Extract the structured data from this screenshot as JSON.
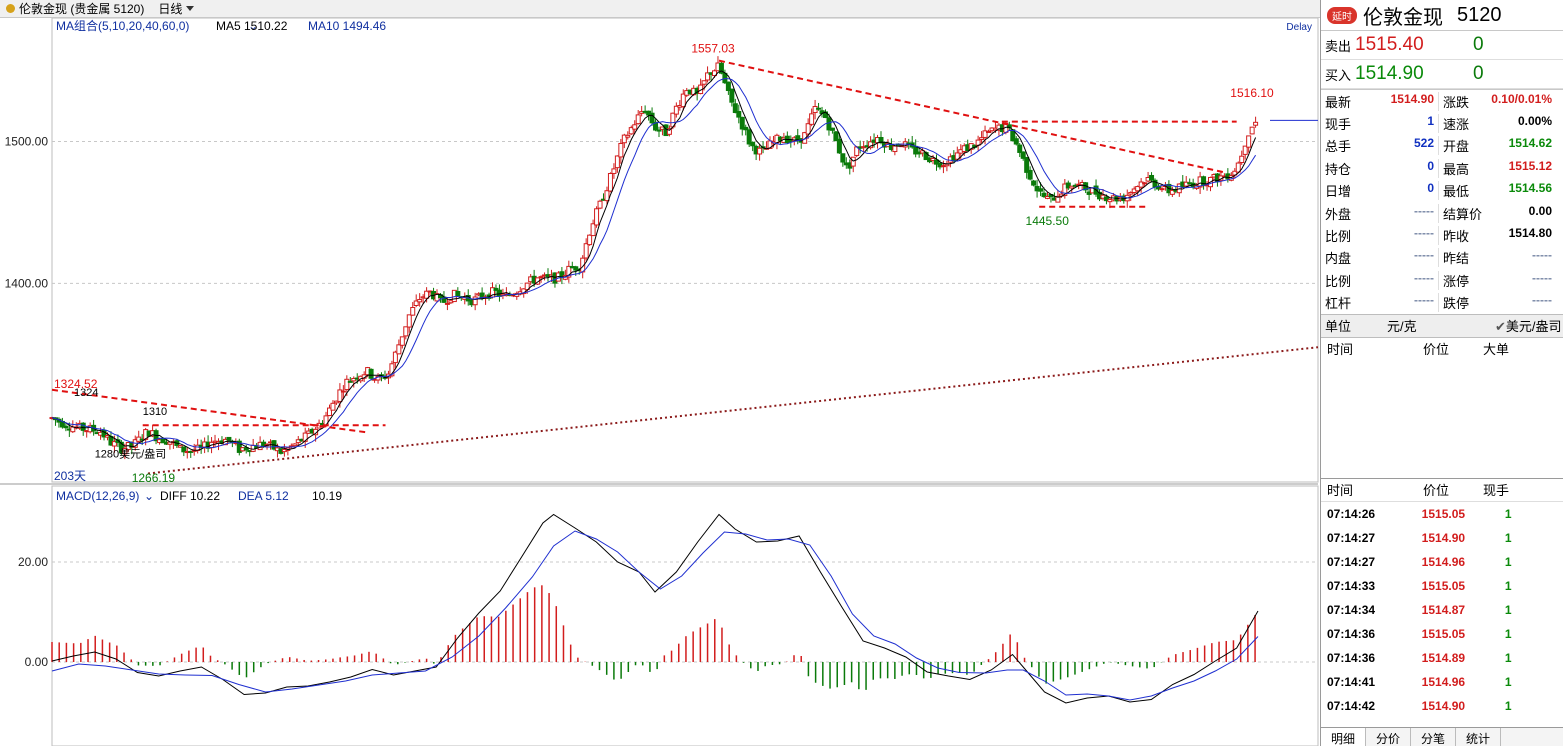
{
  "window": {
    "title": "伦敦金现 (贵金属 5120)",
    "period": "日线"
  },
  "right_panel": {
    "badge": "延时",
    "name": "伦敦金现",
    "code": "5120",
    "sell": {
      "label": "卖出",
      "price": "1515.40",
      "vol": "0"
    },
    "buy": {
      "label": "买入",
      "price": "1514.90",
      "vol": "0"
    },
    "stats": [
      {
        "l": "最新",
        "lv": "1514.90",
        "lc": "red",
        "r": "涨跌",
        "rv": "0.10/0.01%",
        "rc": "red"
      },
      {
        "l": "现手",
        "lv": "1",
        "lc": "blue",
        "r": "速涨",
        "rv": "0.00%",
        "rc": "black"
      },
      {
        "l": "总手",
        "lv": "522",
        "lc": "blue",
        "r": "开盘",
        "rv": "1514.62",
        "rc": "green"
      },
      {
        "l": "持仓",
        "lv": "0",
        "lc": "blue",
        "r": "最高",
        "rv": "1515.12",
        "rc": "red"
      },
      {
        "l": "日增",
        "lv": "0",
        "lc": "blue",
        "r": "最低",
        "rv": "1514.56",
        "rc": "green"
      },
      {
        "l": "外盘",
        "lv": "-----",
        "lc": "dash",
        "r": "结算价",
        "rv": "0.00",
        "rc": "black"
      },
      {
        "l": "比例",
        "lv": "-----",
        "lc": "dash",
        "r": "昨收",
        "rv": "1514.80",
        "rc": "black"
      },
      {
        "l": "内盘",
        "lv": "-----",
        "lc": "dash",
        "r": "昨结",
        "rv": "-----",
        "rc": "dash"
      },
      {
        "l": "比例",
        "lv": "-----",
        "lc": "dash",
        "r": "涨停",
        "rv": "-----",
        "rc": "dash"
      },
      {
        "l": "杠杆",
        "lv": "-----",
        "lc": "dash",
        "r": "跌停",
        "rv": "-----",
        "rc": "dash"
      }
    ],
    "unit": {
      "label": "单位",
      "value": "元/克",
      "alt": "美元/盎司"
    },
    "big_header": {
      "time": "时间",
      "price": "价位",
      "big": "大单"
    },
    "tick_header": {
      "time": "时间",
      "price": "价位",
      "vol": "现手"
    },
    "ticks": [
      {
        "t": "07:14:26",
        "p": "1515.05",
        "v": "1"
      },
      {
        "t": "07:14:27",
        "p": "1514.90",
        "v": "1"
      },
      {
        "t": "07:14:27",
        "p": "1514.96",
        "v": "1"
      },
      {
        "t": "07:14:33",
        "p": "1515.05",
        "v": "1"
      },
      {
        "t": "07:14:34",
        "p": "1514.87",
        "v": "1"
      },
      {
        "t": "07:14:36",
        "p": "1515.05",
        "v": "1"
      },
      {
        "t": "07:14:36",
        "p": "1514.89",
        "v": "1"
      },
      {
        "t": "07:14:41",
        "p": "1514.96",
        "v": "1"
      },
      {
        "t": "07:14:42",
        "p": "1514.90",
        "v": "1"
      }
    ],
    "tabs": [
      "明细",
      "分价",
      "分笔",
      "统计"
    ]
  },
  "colors": {
    "up": "#d21d1d",
    "down": "#0a7a0a",
    "ma5": "#000000",
    "ma10": "#1f2fd0",
    "trend": "#e01010",
    "support": "#8b1a1a"
  },
  "chart_data": [
    {
      "type": "candlestick",
      "legend": {
        "ma": "MA组合(5,10,20,40,60,0)",
        "ma5": "MA5 1510.22",
        "ma10": "MA10 1494.46",
        "delay": "Delay"
      },
      "y_ticks": [
        "1500.00",
        "1400.00"
      ],
      "y_tick_values": [
        1500,
        1400
      ],
      "ylim": [
        1260,
        1580
      ],
      "annotations": {
        "high": "1557.03",
        "low_mid": "1445.50",
        "last_high": "1516.10",
        "left_high": "1324.52",
        "label_1324": "1324",
        "label_1310": "1310",
        "label_1280": "1280美元/盎司",
        "low_left": "1266.19",
        "days": "203天"
      },
      "series_path": [
        [
          0,
          1305
        ],
        [
          6,
          1300
        ],
        [
          10,
          1298
        ],
        [
          14,
          1297
        ],
        [
          18,
          1296
        ],
        [
          22,
          1288
        ],
        [
          26,
          1284
        ],
        [
          30,
          1285
        ],
        [
          36,
          1296
        ],
        [
          40,
          1291
        ],
        [
          44,
          1289
        ],
        [
          48,
          1283
        ],
        [
          52,
          1282
        ],
        [
          56,
          1283
        ],
        [
          60,
          1289
        ],
        [
          66,
          1290
        ],
        [
          70,
          1283
        ],
        [
          74,
          1285
        ],
        [
          80,
          1287
        ],
        [
          86,
          1281
        ],
        [
          90,
          1285
        ],
        [
          96,
          1293
        ],
        [
          102,
          1304
        ],
        [
          106,
          1318
        ],
        [
          110,
          1330
        ],
        [
          114,
          1335
        ],
        [
          118,
          1338
        ],
        [
          122,
          1332
        ],
        [
          126,
          1336
        ],
        [
          130,
          1357
        ],
        [
          134,
          1378
        ],
        [
          138,
          1390
        ],
        [
          142,
          1394
        ],
        [
          146,
          1386
        ],
        [
          150,
          1392
        ],
        [
          154,
          1390
        ],
        [
          158,
          1388
        ],
        [
          162,
          1392
        ],
        [
          166,
          1394
        ],
        [
          170,
          1390
        ],
        [
          174,
          1395
        ],
        [
          178,
          1400
        ],
        [
          182,
          1404
        ],
        [
          186,
          1403
        ],
        [
          190,
          1404
        ],
        [
          194,
          1410
        ],
        [
          198,
          1413
        ],
        [
          202,
          1440
        ],
        [
          206,
          1458
        ],
        [
          210,
          1478
        ],
        [
          214,
          1500
        ],
        [
          218,
          1512
        ],
        [
          222,
          1524
        ],
        [
          226,
          1510
        ],
        [
          230,
          1506
        ],
        [
          234,
          1524
        ],
        [
          238,
          1538
        ],
        [
          242,
          1532
        ],
        [
          246,
          1548
        ],
        [
          250,
          1553
        ],
        [
          254,
          1530
        ],
        [
          258,
          1515
        ],
        [
          262,
          1497
        ],
        [
          266,
          1492
        ],
        [
          270,
          1499
        ],
        [
          274,
          1504
        ],
        [
          278,
          1500
        ],
        [
          282,
          1504
        ],
        [
          286,
          1523
        ],
        [
          290,
          1517
        ],
        [
          294,
          1499
        ],
        [
          298,
          1480
        ],
        [
          302,
          1496
        ],
        [
          306,
          1500
        ],
        [
          310,
          1503
        ],
        [
          314,
          1496
        ],
        [
          318,
          1500
        ],
        [
          322,
          1494
        ],
        [
          326,
          1492
        ],
        [
          330,
          1487
        ],
        [
          334,
          1485
        ],
        [
          338,
          1490
        ],
        [
          342,
          1495
        ],
        [
          346,
          1498
        ],
        [
          350,
          1505
        ],
        [
          354,
          1509
        ],
        [
          358,
          1510
        ],
        [
          362,
          1496
        ],
        [
          366,
          1478
        ],
        [
          370,
          1464
        ],
        [
          374,
          1458
        ],
        [
          378,
          1465
        ],
        [
          382,
          1470
        ],
        [
          386,
          1468
        ],
        [
          390,
          1465
        ],
        [
          394,
          1462
        ],
        [
          398,
          1460
        ],
        [
          402,
          1461
        ],
        [
          406,
          1468
        ],
        [
          410,
          1474
        ],
        [
          414,
          1470
        ],
        [
          418,
          1465
        ],
        [
          422,
          1467
        ],
        [
          426,
          1470
        ],
        [
          430,
          1472
        ],
        [
          434,
          1473
        ],
        [
          438,
          1475
        ],
        [
          442,
          1478
        ],
        [
          444,
          1482
        ],
        [
          446,
          1492
        ],
        [
          448,
          1505
        ],
        [
          450,
          1512
        ],
        [
          452,
          1515
        ]
      ]
    },
    {
      "type": "line",
      "legend": {
        "name": "MACD(12,26,9)",
        "diff": "DIFF 10.22",
        "dea": "DEA 5.12",
        "macd": "10.19"
      },
      "y_ticks": [
        "20.00",
        "0.00"
      ],
      "y_tick_values": [
        20,
        0
      ],
      "ylim": [
        -16,
        30
      ],
      "diff": [
        [
          0,
          0.2
        ],
        [
          8,
          1.2
        ],
        [
          16,
          2.0
        ],
        [
          24,
          0.6
        ],
        [
          32,
          -2.1
        ],
        [
          40,
          -2.8
        ],
        [
          48,
          -1.8
        ],
        [
          56,
          -1.0
        ],
        [
          64,
          -3.5
        ],
        [
          72,
          -6.5
        ],
        [
          80,
          -6.2
        ],
        [
          88,
          -5.0
        ],
        [
          96,
          -4.8
        ],
        [
          104,
          -4.0
        ],
        [
          112,
          -3.0
        ],
        [
          120,
          -1.5
        ],
        [
          128,
          -2.6
        ],
        [
          136,
          -1.8
        ],
        [
          144,
          -1.0
        ],
        [
          152,
          4.8
        ],
        [
          160,
          9.8
        ],
        [
          168,
          14.2
        ],
        [
          176,
          21.0
        ],
        [
          184,
          27.8
        ],
        [
          188,
          29.5
        ],
        [
          196,
          26.8
        ],
        [
          204,
          24.0
        ],
        [
          212,
          20.0
        ],
        [
          220,
          18.0
        ],
        [
          226,
          14.0
        ],
        [
          234,
          18.0
        ],
        [
          242,
          24.0
        ],
        [
          250,
          29.5
        ],
        [
          256,
          26.6
        ],
        [
          264,
          24.0
        ],
        [
          272,
          24.2
        ],
        [
          280,
          25.2
        ],
        [
          288,
          18.0
        ],
        [
          296,
          11.0
        ],
        [
          304,
          4.2
        ],
        [
          312,
          2.8
        ],
        [
          320,
          1.0
        ],
        [
          328,
          -2.0
        ],
        [
          336,
          -2.8
        ],
        [
          344,
          -3.5
        ],
        [
          352,
          -1.6
        ],
        [
          360,
          1.5
        ],
        [
          364,
          -1.0
        ],
        [
          372,
          -6.0
        ],
        [
          380,
          -8.2
        ],
        [
          388,
          -7.2
        ],
        [
          396,
          -6.8
        ],
        [
          404,
          -8.0
        ],
        [
          412,
          -7.5
        ],
        [
          420,
          -4.5
        ],
        [
          428,
          -2.5
        ],
        [
          436,
          0.2
        ],
        [
          444,
          2.8
        ],
        [
          452,
          10.2
        ]
      ],
      "dea": [
        [
          0,
          -1.8
        ],
        [
          10,
          -0.4
        ],
        [
          20,
          -0.8
        ],
        [
          30,
          -1.6
        ],
        [
          40,
          -2.4
        ],
        [
          50,
          -2.6
        ],
        [
          60,
          -2.7
        ],
        [
          70,
          -4.5
        ],
        [
          80,
          -6.0
        ],
        [
          90,
          -5.4
        ],
        [
          100,
          -4.6
        ],
        [
          110,
          -3.8
        ],
        [
          120,
          -2.6
        ],
        [
          130,
          -2.2
        ],
        [
          140,
          -1.8
        ],
        [
          150,
          1.0
        ],
        [
          160,
          5.2
        ],
        [
          170,
          10.8
        ],
        [
          180,
          17.0
        ],
        [
          188,
          23.2
        ],
        [
          196,
          26.2
        ],
        [
          204,
          24.6
        ],
        [
          212,
          22.0
        ],
        [
          220,
          18.0
        ],
        [
          228,
          14.6
        ],
        [
          236,
          17.2
        ],
        [
          244,
          21.8
        ],
        [
          252,
          26.0
        ],
        [
          260,
          25.6
        ],
        [
          268,
          24.4
        ],
        [
          276,
          24.6
        ],
        [
          284,
          23.4
        ],
        [
          292,
          17.2
        ],
        [
          300,
          9.6
        ],
        [
          308,
          5.2
        ],
        [
          316,
          3.6
        ],
        [
          324,
          0.8
        ],
        [
          332,
          -1.2
        ],
        [
          340,
          -2.1
        ],
        [
          350,
          -2.2
        ],
        [
          358,
          -1.6
        ],
        [
          364,
          -1.6
        ],
        [
          372,
          -3.8
        ],
        [
          380,
          -6.6
        ],
        [
          388,
          -6.4
        ],
        [
          396,
          -6.8
        ],
        [
          404,
          -7.6
        ],
        [
          412,
          -6.8
        ],
        [
          420,
          -5.2
        ],
        [
          428,
          -3.8
        ],
        [
          436,
          -1.8
        ],
        [
          444,
          0.6
        ],
        [
          452,
          5.1
        ]
      ]
    }
  ]
}
